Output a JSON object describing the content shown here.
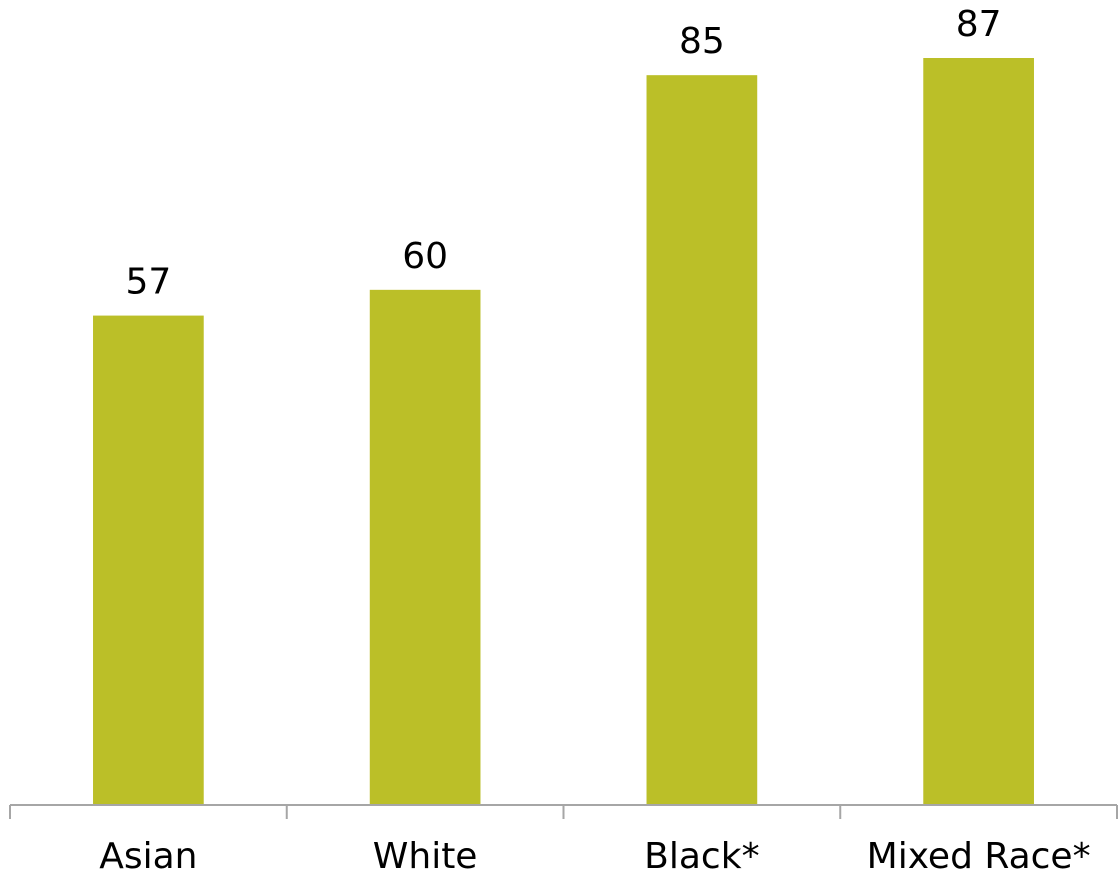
{
  "chart_data": {
    "type": "bar",
    "categories": [
      "Asian",
      "White",
      "Black*",
      "Mixed Race*"
    ],
    "values": [
      57,
      60,
      85,
      87
    ],
    "data_labels": [
      "57",
      "60",
      "85",
      "87"
    ],
    "title": "",
    "xlabel": "",
    "ylabel": "",
    "ylim": [
      0,
      87
    ],
    "grid": false,
    "legend": "none",
    "bar_color": "#BBBF28",
    "axis_color": "#A6A6A6"
  }
}
